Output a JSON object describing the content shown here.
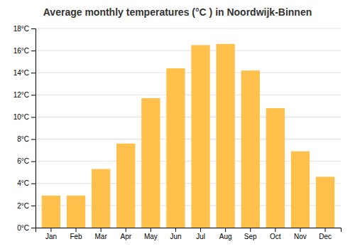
{
  "chart_data": {
    "type": "bar",
    "title": "Average monthly temperatures (°C ) in Noordwijk-Binnen",
    "categories": [
      "Jan",
      "Feb",
      "Mar",
      "Apr",
      "May",
      "Jun",
      "Jul",
      "Aug",
      "Sep",
      "Oct",
      "Nov",
      "Dec"
    ],
    "values": [
      2.9,
      2.9,
      5.3,
      7.6,
      11.7,
      14.4,
      16.5,
      16.6,
      14.2,
      10.8,
      6.9,
      4.6
    ],
    "color": "#FFC04C",
    "ylim": [
      0,
      18
    ],
    "yticks": [
      {
        "value": 0,
        "label": "0°C"
      },
      {
        "value": 2,
        "label": "2°C"
      },
      {
        "value": 4,
        "label": "4°C"
      },
      {
        "value": 6,
        "label": "6°C"
      },
      {
        "value": 8,
        "label": "8°C"
      },
      {
        "value": 10,
        "label": "10°C"
      },
      {
        "value": 12,
        "label": "12°C"
      },
      {
        "value": 14,
        "label": "14°C"
      },
      {
        "value": 16,
        "label": "16°C"
      },
      {
        "value": 18,
        "label": "18°C"
      }
    ],
    "grid": true
  }
}
